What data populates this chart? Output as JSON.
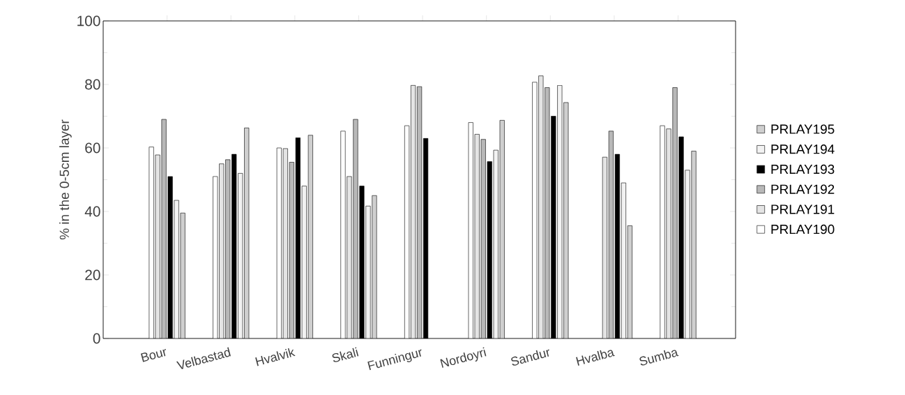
{
  "chart_data": {
    "type": "bar",
    "ylabel": "% in the 0-5cm layer",
    "categories": [
      "Bour",
      "Velbastad",
      "Hvalvik",
      "Skali",
      "Funningur",
      "Nordoyri",
      "Sandur",
      "Hvalba",
      "Sumba"
    ],
    "series": [
      {
        "name": "PRLAY190",
        "color": "#ffffff",
        "values": [
          60.3,
          51,
          60,
          65.3,
          67,
          68,
          80.7,
          null,
          67
        ]
      },
      {
        "name": "PRLAY191",
        "color": "#e4e4e4",
        "values": [
          57.8,
          55,
          59.8,
          51,
          79.7,
          64.3,
          82.7,
          57.1,
          66
        ]
      },
      {
        "name": "PRLAY192",
        "color": "#b8b8b8",
        "values": [
          69,
          56.3,
          55.5,
          69,
          79.3,
          62.7,
          79,
          65.3,
          79
        ]
      },
      {
        "name": "PRLAY193",
        "color": "#000000",
        "values": [
          51,
          58,
          63.2,
          48,
          63,
          55.7,
          70,
          58,
          63.5
        ]
      },
      {
        "name": "PRLAY194",
        "color": "#f2f2f2",
        "values": [
          43.5,
          52,
          48,
          41.7,
          null,
          59.3,
          79.7,
          49,
          53
        ]
      },
      {
        "name": "PRLAY195",
        "color": "#cfcfcf",
        "values": [
          39.5,
          66.3,
          64,
          45,
          null,
          68.7,
          74.3,
          35.5,
          59
        ]
      }
    ],
    "ylim": [
      0,
      100
    ],
    "yticks": [
      0,
      20,
      40,
      60,
      80,
      100
    ],
    "grid": false,
    "legend": "right"
  }
}
